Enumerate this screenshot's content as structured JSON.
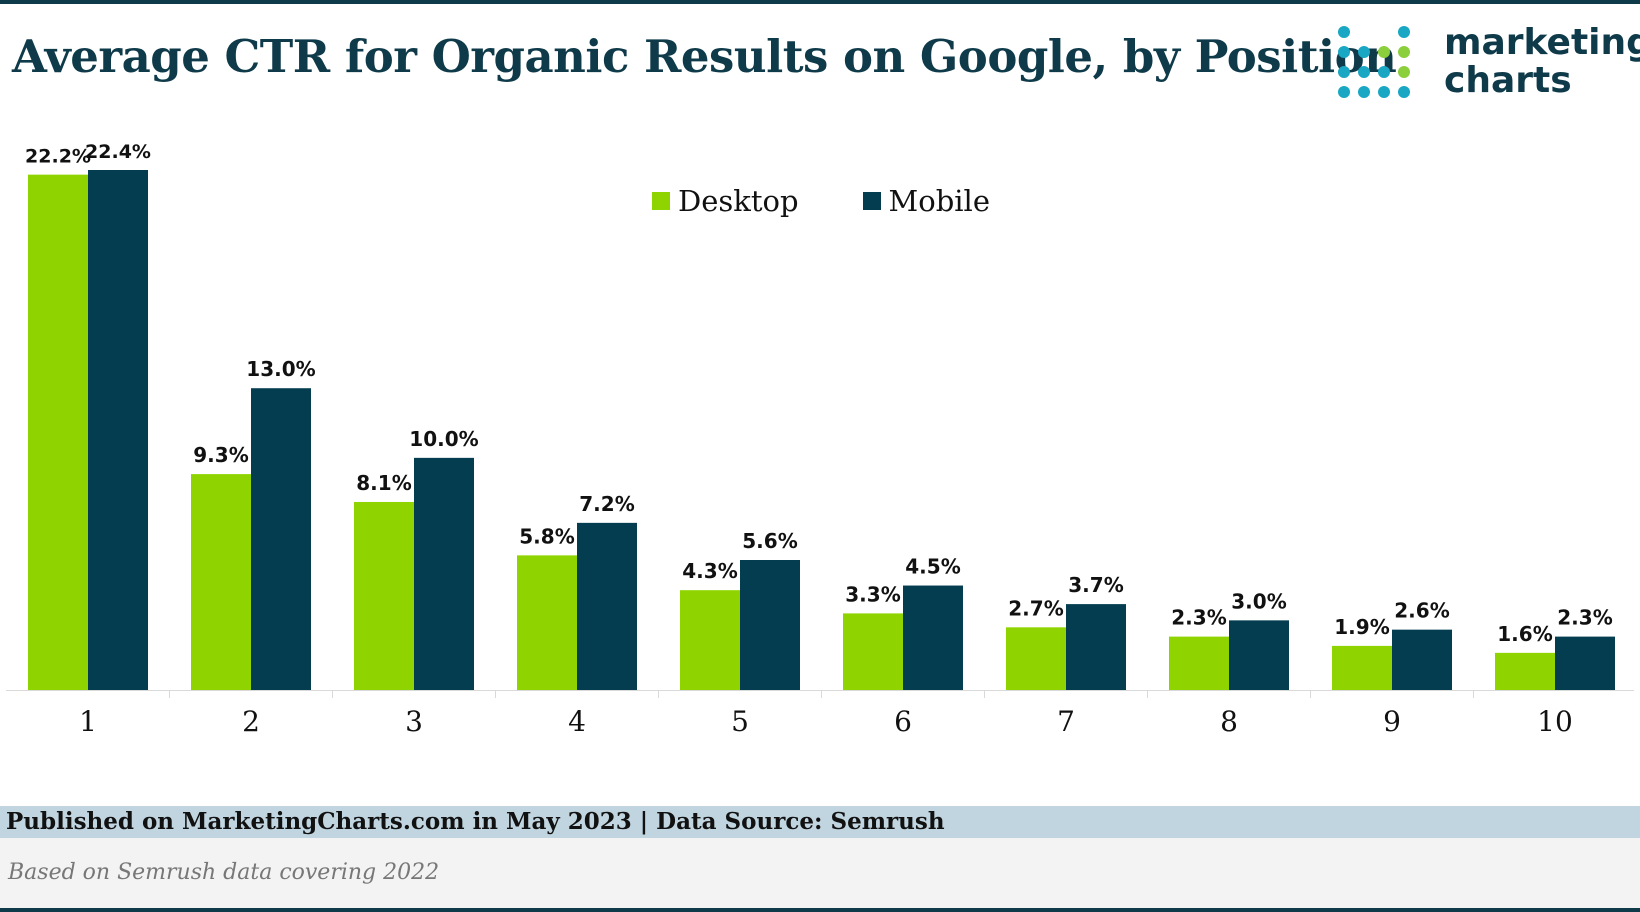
{
  "header": {
    "title": "Average CTR for Organic Results on Google, by Position",
    "logo_line1": "marketing",
    "logo_line2": "charts"
  },
  "colors": {
    "desktop": "#8fd400",
    "mobile": "#033d4f",
    "brand": "#0e3a4a",
    "logo_dot_teal": "#19a7c4",
    "logo_dot_green": "#8ccf3c"
  },
  "chart_data": {
    "type": "bar",
    "title": "Average CTR for Organic Results on Google, by Position",
    "categories": [
      "1",
      "2",
      "3",
      "4",
      "5",
      "6",
      "7",
      "8",
      "9",
      "10"
    ],
    "series": [
      {
        "name": "Desktop",
        "values": [
          22.2,
          9.3,
          8.1,
          5.8,
          4.3,
          3.3,
          2.7,
          2.3,
          1.9,
          1.6
        ],
        "labels": [
          "22.2%",
          "9.3%",
          "8.1%",
          "5.8%",
          "4.3%",
          "3.3%",
          "2.7%",
          "2.3%",
          "1.9%",
          "1.6%"
        ]
      },
      {
        "name": "Mobile",
        "values": [
          22.4,
          13.0,
          10.0,
          7.2,
          5.6,
          4.5,
          3.7,
          3.0,
          2.6,
          2.3
        ],
        "labels": [
          "22.4%",
          "13.0%",
          "10.0%",
          "7.2%",
          "5.6%",
          "4.5%",
          "3.7%",
          "3.0%",
          "2.6%",
          "2.3%"
        ]
      }
    ],
    "ylim": [
      0,
      22.4
    ],
    "legend": "top-center",
    "grid": false
  },
  "footer": {
    "source": "Published on MarketingCharts.com in May 2023 | Data Source: Semrush",
    "note": "Based on Semrush data covering 2022"
  }
}
